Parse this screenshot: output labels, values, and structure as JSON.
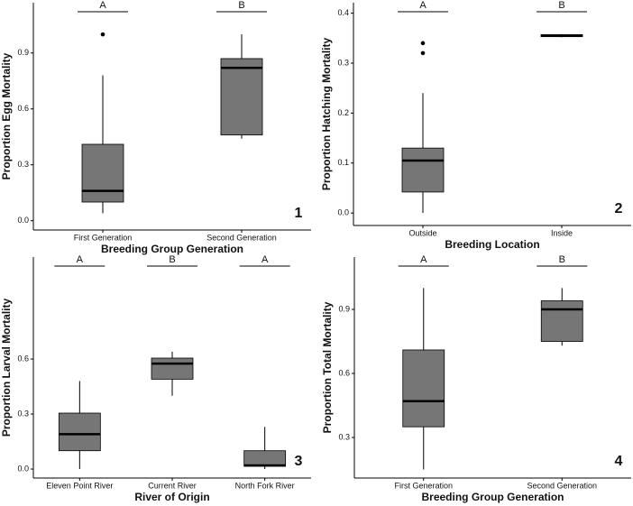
{
  "chart_data": [
    {
      "type": "box",
      "x_label": "Breeding Group Generation",
      "y_label": "Proportion Egg Mortality",
      "panel_label": "1",
      "categories": [
        "First Generation",
        "Second Generation"
      ],
      "letters": [
        "A",
        "B"
      ],
      "boxes": [
        {
          "low": 0.04,
          "q1": 0.1,
          "median": 0.16,
          "q3": 0.41,
          "high": 0.78,
          "outliers": [
            1.0
          ]
        },
        {
          "low": 0.44,
          "q1": 0.46,
          "median": 0.82,
          "q3": 0.87,
          "high": 1.0,
          "outliers": []
        }
      ],
      "color": "#767676",
      "ylim": [
        -0.05,
        1.17
      ],
      "yticks": [
        {
          "value": 0,
          "label": "0.0"
        },
        0.3,
        0.6,
        0.9
      ],
      "grid": false
    },
    {
      "type": "box",
      "x_label": "Breeding Location",
      "y_label": "Proportion Hatching Mortality",
      "panel_label": "2",
      "categories": [
        "Outside",
        "Inside"
      ],
      "letters": [
        "A",
        "B"
      ],
      "boxes": [
        {
          "low": 0.0,
          "q1": 0.042,
          "median": 0.105,
          "q3": 0.13,
          "high": 0.24,
          "outliers": [
            0.32,
            0.34
          ]
        },
        {
          "low": 0.352,
          "q1": 0.353,
          "median": 0.355,
          "q3": 0.357,
          "high": 0.358,
          "outliers": []
        }
      ],
      "color": "#767676",
      "ylim": [
        -0.025,
        0.421
      ],
      "yticks": [
        {
          "value": 0,
          "label": "0.0"
        },
        0.1,
        0.2,
        0.3,
        0.4
      ],
      "grid": false
    },
    {
      "type": "box",
      "x_label": "River of Origin",
      "y_label": "Proportion Larval Mortality",
      "panel_label": "3",
      "categories": [
        "Eleven Point River",
        "Current River",
        "North Fork River"
      ],
      "letters": [
        "A",
        "B",
        "A"
      ],
      "boxes": [
        {
          "low": 0.0,
          "q1": 0.1,
          "median": 0.19,
          "q3": 0.305,
          "high": 0.48,
          "outliers": []
        },
        {
          "low": 0.4,
          "q1": 0.49,
          "median": 0.575,
          "q3": 0.605,
          "high": 0.64,
          "outliers": []
        },
        {
          "low": 0.0,
          "q1": 0.015,
          "median": 0.02,
          "q3": 0.1,
          "high": 0.23,
          "outliers": []
        }
      ],
      "color": "#767676",
      "ylim": [
        -0.049,
        1.156
      ],
      "yticks": [
        {
          "value": 0,
          "label": "0.0"
        },
        0.3,
        0.6
      ],
      "grid": false
    },
    {
      "type": "box",
      "x_label": "Breeding Group Generation",
      "y_label": "Proportion Total Mortality",
      "panel_label": "4",
      "categories": [
        "First Generation",
        "Second Generation"
      ],
      "letters": [
        "A",
        "B"
      ],
      "boxes": [
        {
          "low": 0.15,
          "q1": 0.35,
          "median": 0.47,
          "q3": 0.71,
          "high": 1.0,
          "outliers": []
        },
        {
          "low": 0.73,
          "q1": 0.75,
          "median": 0.9,
          "q3": 0.94,
          "high": 1.0,
          "outliers": []
        }
      ],
      "color": "#767676",
      "ylim": [
        0.11,
        1.145
      ],
      "yticks": [
        0.3,
        0.6,
        0.9
      ],
      "grid": false
    }
  ]
}
